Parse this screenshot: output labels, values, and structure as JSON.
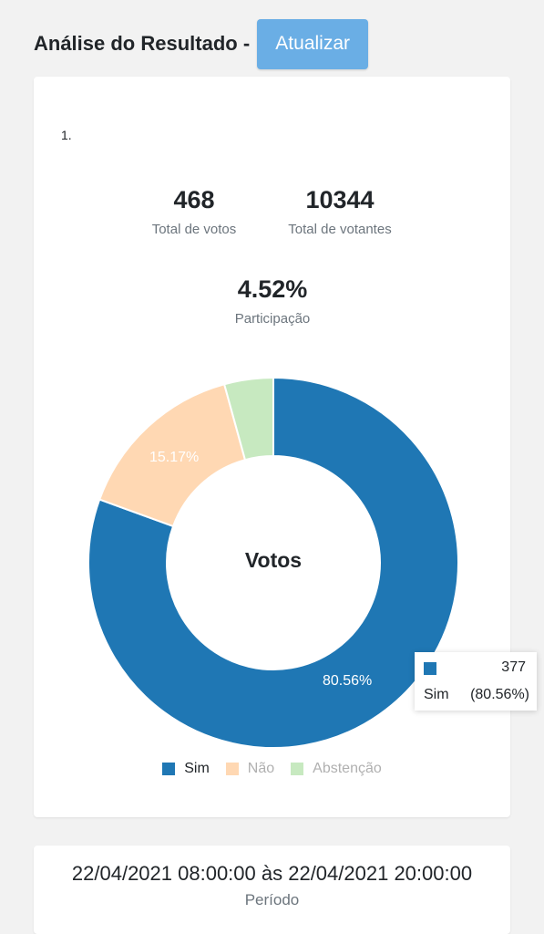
{
  "header": {
    "title": "Análise do Resultado -",
    "refresh_label": "Atualizar"
  },
  "question": {
    "number": "1."
  },
  "stats": {
    "total_votes": {
      "value": "468",
      "label": "Total de votos"
    },
    "total_voters": {
      "value": "10344",
      "label": "Total de votantes"
    },
    "participation": {
      "value": "4.52%",
      "label": "Participação"
    }
  },
  "chart_data": {
    "type": "pie",
    "title": "Votos",
    "categories": [
      "Sim",
      "Não",
      "Abstenção"
    ],
    "values": [
      377,
      71,
      20
    ],
    "percent_labels": [
      "80.56%",
      "15.17%",
      ""
    ],
    "colors": [
      "#1f77b4",
      "#ffd8b3",
      "#c7e9c0"
    ],
    "legend_position": "bottom"
  },
  "tooltip": {
    "value": "377",
    "label": "Sim",
    "percent": "(80.56%)",
    "color": "#1f77b4"
  },
  "period": {
    "value": "22/04/2021 08:00:00 às 22/04/2021 20:00:00",
    "label": "Período"
  }
}
